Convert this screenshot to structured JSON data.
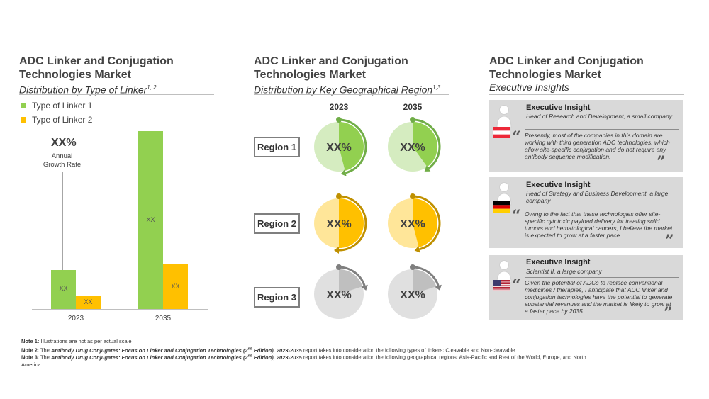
{
  "panel1": {
    "title_line1": "ADC Linker and Conjugation",
    "title_line2": "Technologies Market",
    "subtitle": "Distribution by Type of Linker",
    "subtitle_sup": "1, 2",
    "cagr_value": "XX%",
    "cagr_label_line1": "Annual",
    "cagr_label_line2": "Growth Rate"
  },
  "chart_data": {
    "type": "bar",
    "categories": [
      "2023",
      "2035"
    ],
    "series": [
      {
        "name": "Type of Linker 1",
        "values": [
          22,
          100
        ],
        "labels": [
          "XX",
          "XX"
        ],
        "color": "#92d050"
      },
      {
        "name": "Type of Linker 2",
        "values": [
          7,
          25
        ],
        "labels": [
          "XX",
          "XX"
        ],
        "color": "#ffc000"
      }
    ],
    "ylim": [
      0,
      100
    ],
    "legend": "top-left",
    "grid": false
  },
  "panel2": {
    "title_line1": "ADC Linker and Conjugation",
    "title_line2": "Technologies Market",
    "subtitle": "Distribution by Key Geographical Region",
    "subtitle_sup": "1,3",
    "years": [
      "2023",
      "2035"
    ],
    "regions": [
      {
        "name": "Region 1",
        "values": [
          "XX%",
          "XX%"
        ],
        "shares": [
          0.46,
          0.4
        ],
        "light": "#d5ecc0",
        "dark": "#92d050",
        "ring": "#70ad47"
      },
      {
        "name": "Region 2",
        "values": [
          "XX%",
          "XX%"
        ],
        "shares": [
          0.5,
          0.46
        ],
        "light": "#ffe699",
        "dark": "#ffc000",
        "ring": "#bf9000"
      },
      {
        "name": "Region 3",
        "values": [
          "XX%",
          "XX%"
        ],
        "shares": [
          0.2,
          0.2
        ],
        "light": "#e0e0e0",
        "dark": "#bfbfbf",
        "ring": "#7f7f7f"
      }
    ]
  },
  "panel3": {
    "title_line1": "ADC Linker and Conjugation",
    "title_line2": "Technologies Market",
    "subtitle": "Executive Insights",
    "insights": [
      {
        "heading": "Executive Insight",
        "role": "Head of  Research and Development, a small company",
        "quote": "Presently, most of the companies in this domain are working with third generation ADC technologies, which allow site-specific conjugation and do not require any antibody sequence modification.",
        "flag": "austria"
      },
      {
        "heading": "Executive Insight",
        "role": "Head of Strategy and Business Development, a large company",
        "quote": "Owing to the fact that these technologies offer site-specific cytotoxic payload delivery for treating solid tumors and hematological cancers, I believe the market is expected to grow at a faster pace.",
        "flag": "germany"
      },
      {
        "heading": "Executive Insight",
        "role": "Scientist II, a large company",
        "quote": "Given the potential of ADCs to replace conventional medicines / therapies, I anticipate that ADC linker and conjugation technologies have the potential to generate substantial revenues and the market is likely to grow at a faster pace by 2035.",
        "flag": "usa"
      }
    ]
  },
  "notes": {
    "n1_label": "Note 1:",
    "n1_text": " Illustrations are not as per actual scale",
    "n2_label": "Note 2",
    "n2_pre": ": The ",
    "n2_title": "Antibody Drug Conjugates: Focus on Linker and Conjugation Technologies (2",
    "n2_sup": "nd",
    "n2_title2": " Edition), 2023-2035",
    "n2_text": " report takes into consideration the following types of linkers: Cleavable and Non-cleavable",
    "n3_label": "Note 3",
    "n3_pre": ": The ",
    "n3_title": "Antibody Drug Conjugates: Focus on Linker and Conjugation Technologies (2",
    "n3_sup": "nd",
    "n3_title2": " Edition), 2023-2035",
    "n3_text": " report takes into consideration the following geographical regions: Asia-Pacific and Rest of the World, Europe, and North America"
  }
}
